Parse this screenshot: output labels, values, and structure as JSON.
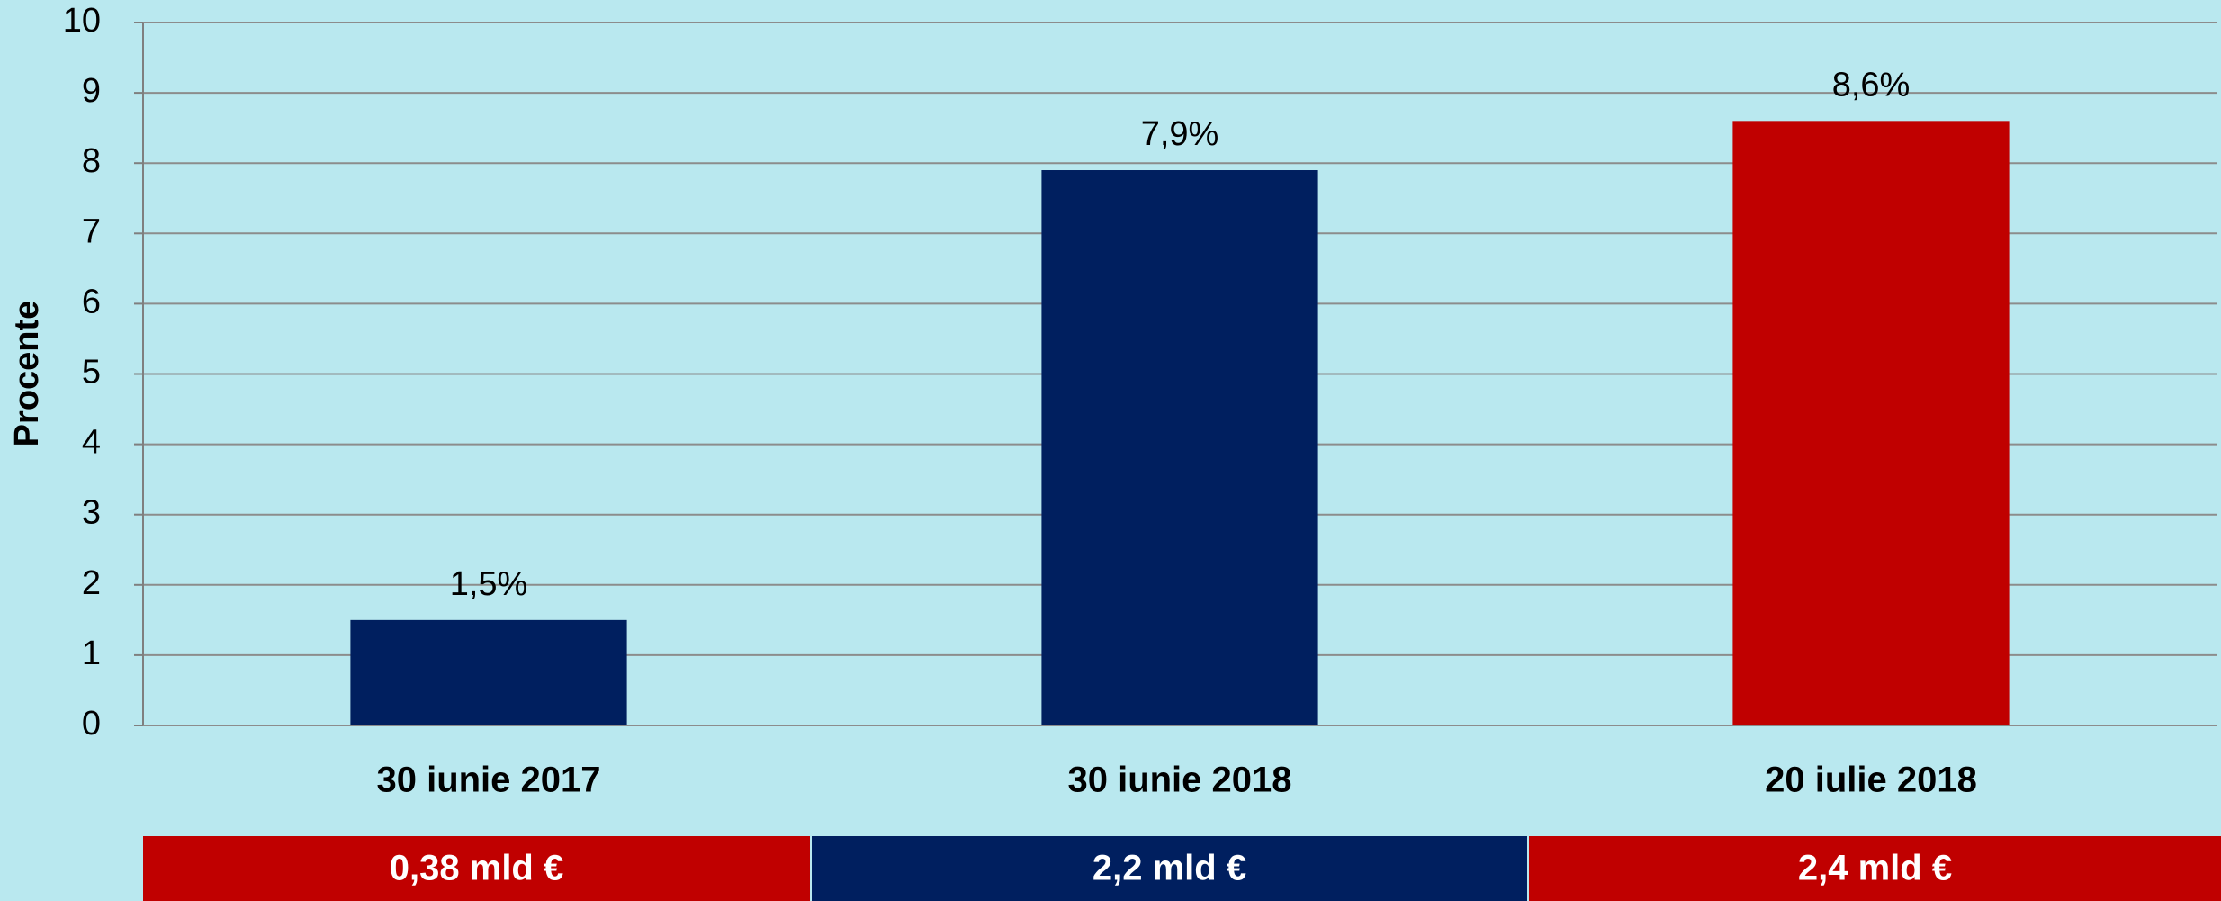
{
  "chart_data": {
    "type": "bar",
    "y_label": "Procente",
    "categories": [
      "30 iunie 2017",
      "30 iunie 2018",
      "20 iulie 2018"
    ],
    "values": [
      1.5,
      7.9,
      8.6
    ],
    "value_labels": [
      "1,5%",
      "7,9%",
      "8,6%"
    ],
    "colors": [
      "#001f5f",
      "#001f5f",
      "#c00000"
    ],
    "ylim": [
      0,
      10
    ],
    "yticks": [
      0,
      1,
      2,
      3,
      4,
      5,
      6,
      7,
      8,
      9,
      10
    ],
    "grid": true,
    "footer_boxes": [
      {
        "label": "0,38 mld €",
        "color": "#c00000"
      },
      {
        "label": "2,2 mld €",
        "color": "#001f5f"
      },
      {
        "label": "2,4 mld €",
        "color": "#c00000"
      }
    ]
  }
}
